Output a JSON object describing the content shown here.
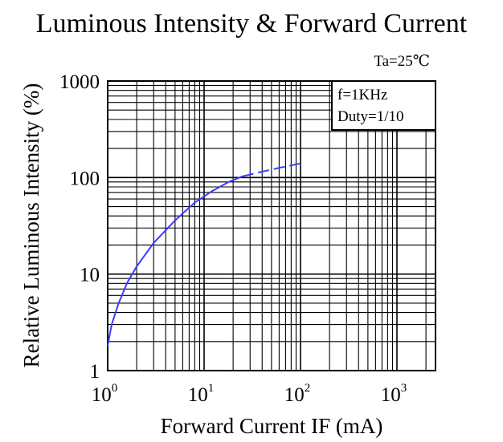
{
  "chart_data": {
    "type": "line",
    "title": "Luminous Intensity & Forward Current",
    "xlabel": "Forward Current IF (mA)",
    "ylabel": "Relative Luminous Intensity (%)",
    "x_scale": "log",
    "y_scale": "log",
    "xlim": [
      1,
      3000
    ],
    "ylim": [
      1,
      1000
    ],
    "x_ticks": [
      {
        "value": 1,
        "base": "10",
        "exp": "0"
      },
      {
        "value": 10,
        "base": "10",
        "exp": "1"
      },
      {
        "value": 100,
        "base": "10",
        "exp": "2"
      },
      {
        "value": 1000,
        "base": "10",
        "exp": "3"
      }
    ],
    "y_ticks": [
      {
        "value": 1,
        "label": "1"
      },
      {
        "value": 10,
        "label": "10"
      },
      {
        "value": 100,
        "label": "100"
      },
      {
        "value": 1000,
        "label": "1000"
      }
    ],
    "grid": true,
    "annotations": {
      "condition": "Ta=25℃",
      "frequency": "f=1KHz",
      "duty": "Duty=1/10"
    },
    "series": [
      {
        "color": "#3b3bff",
        "points": [
          {
            "x": 1.0,
            "y": 1.8
          },
          {
            "x": 1.1,
            "y": 3.0
          },
          {
            "x": 1.3,
            "y": 5.0
          },
          {
            "x": 1.6,
            "y": 8.2
          },
          {
            "x": 2.0,
            "y": 12
          },
          {
            "x": 3.0,
            "y": 21
          },
          {
            "x": 5.0,
            "y": 36
          },
          {
            "x": 8.0,
            "y": 55
          },
          {
            "x": 12,
            "y": 72
          },
          {
            "x": 18,
            "y": 90
          },
          {
            "x": 25,
            "y": 103
          }
        ],
        "dashed_points": [
          {
            "x": 25,
            "y": 103
          },
          {
            "x": 40,
            "y": 115
          },
          {
            "x": 60,
            "y": 126
          },
          {
            "x": 100,
            "y": 140
          }
        ]
      }
    ]
  }
}
